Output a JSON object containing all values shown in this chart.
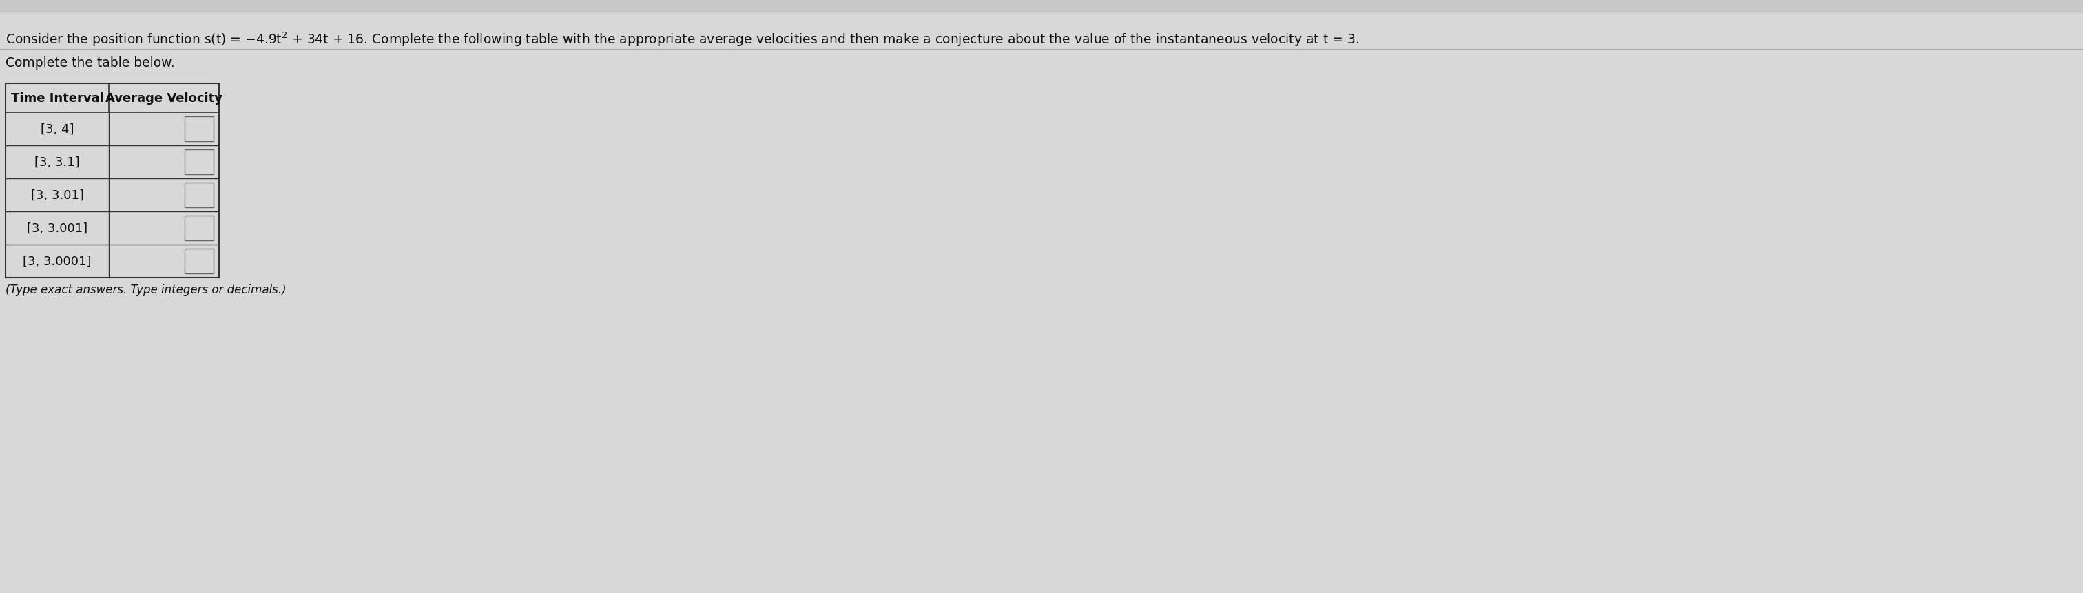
{
  "title_text": "Consider the position function s(t) = −4.9t² + 34t + 16. Complete the following table with the appropriate average velocities and then make a conjecture about the value of the instantaneous velocity at t = 3.",
  "subtitle_text": "Complete the table below.",
  "note_text": "(Type exact answers. Type integers or decimals.)",
  "col1_header": "Time Interval",
  "col2_header": "Average Velocity",
  "rows": [
    "[3, 4]",
    "[3, 3.1]",
    "[3, 3.01]",
    "[3, 3.001]",
    "[3, 3.0001]"
  ],
  "background_color": "#d8d8d8",
  "table_bg": "#d8d8d8",
  "header_bg": "#d8d8d8",
  "cell_border": "#333333",
  "text_color": "#111111",
  "title_fontsize": 13.5,
  "subtitle_fontsize": 13.5,
  "note_fontsize": 12,
  "table_header_fontsize": 13,
  "table_row_fontsize": 13,
  "input_box_color": "#d8d8d8",
  "input_box_border": "#666666",
  "top_bar_color": "#c0c0c0",
  "separator_line_color": "#999999"
}
